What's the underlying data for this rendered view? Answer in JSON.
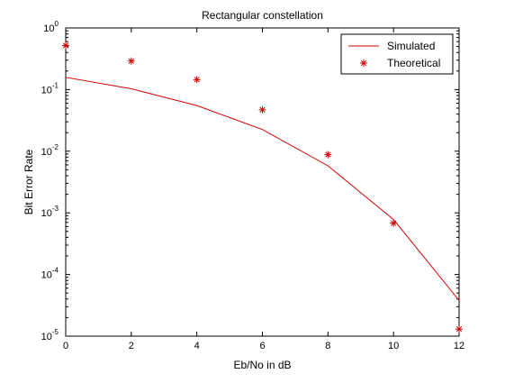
{
  "chart_data": {
    "type": "line",
    "title": "Rectangular constellation",
    "xlabel": "Eb/No in dB",
    "ylabel": "Bit Error Rate",
    "xlim": [
      0,
      12
    ],
    "ylim": [
      1e-05,
      1
    ],
    "yscale": "log",
    "grid": false,
    "legend_position": "top-right",
    "x_ticks": [
      0,
      2,
      4,
      6,
      8,
      10,
      12
    ],
    "y_ticks": [
      {
        "base": "10",
        "exp": "0",
        "value": 1
      },
      {
        "base": "10",
        "exp": "-1",
        "value": 0.1
      },
      {
        "base": "10",
        "exp": "-2",
        "value": 0.01
      },
      {
        "base": "10",
        "exp": "-3",
        "value": 0.001
      },
      {
        "base": "10",
        "exp": "-4",
        "value": 0.0001
      },
      {
        "base": "10",
        "exp": "-5",
        "value": 1e-05
      }
    ],
    "series": [
      {
        "name": "Simulated",
        "style": "line",
        "color": "#d00000",
        "x": [
          0,
          2,
          4,
          6,
          8,
          10,
          12
        ],
        "y": [
          0.158,
          0.103,
          0.055,
          0.0225,
          0.0058,
          0.00078,
          3.8e-05
        ]
      },
      {
        "name": "Theoretical",
        "style": "marker",
        "marker": "*",
        "color": "#d00000",
        "x": [
          0,
          2,
          4,
          6,
          8,
          10,
          12
        ],
        "y": [
          0.52,
          0.29,
          0.145,
          0.047,
          0.0088,
          0.00068,
          1.3e-05
        ]
      }
    ]
  }
}
